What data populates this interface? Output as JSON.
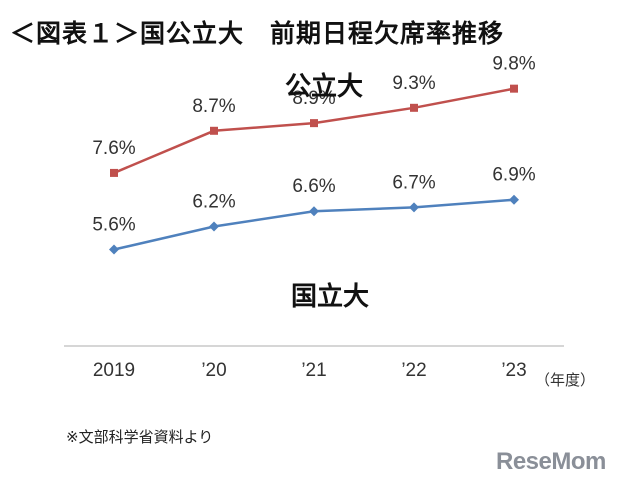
{
  "title": "＜図表１＞国公立大　前期日程欠席率推移",
  "source": "※文部科学省資料より",
  "logo": "ReseMom",
  "chart_data": {
    "type": "line",
    "categories": [
      "2019",
      "’20",
      "’21",
      "’22",
      "’23"
    ],
    "unit_label": "（年度）",
    "ylim": [
      4,
      11
    ],
    "grid": false,
    "series": [
      {
        "name": "公立大",
        "values": [
          7.6,
          8.7,
          8.9,
          9.3,
          9.8
        ],
        "labels": [
          "7.6%",
          "8.7%",
          "8.9%",
          "9.3%",
          "9.8%"
        ],
        "color": "#c0504d",
        "marker": "square"
      },
      {
        "name": "国立大",
        "values": [
          5.6,
          6.2,
          6.6,
          6.7,
          6.9
        ],
        "labels": [
          "5.6%",
          "6.2%",
          "6.6%",
          "6.7%",
          "6.9%"
        ],
        "color": "#4f81bd",
        "marker": "diamond"
      }
    ]
  }
}
